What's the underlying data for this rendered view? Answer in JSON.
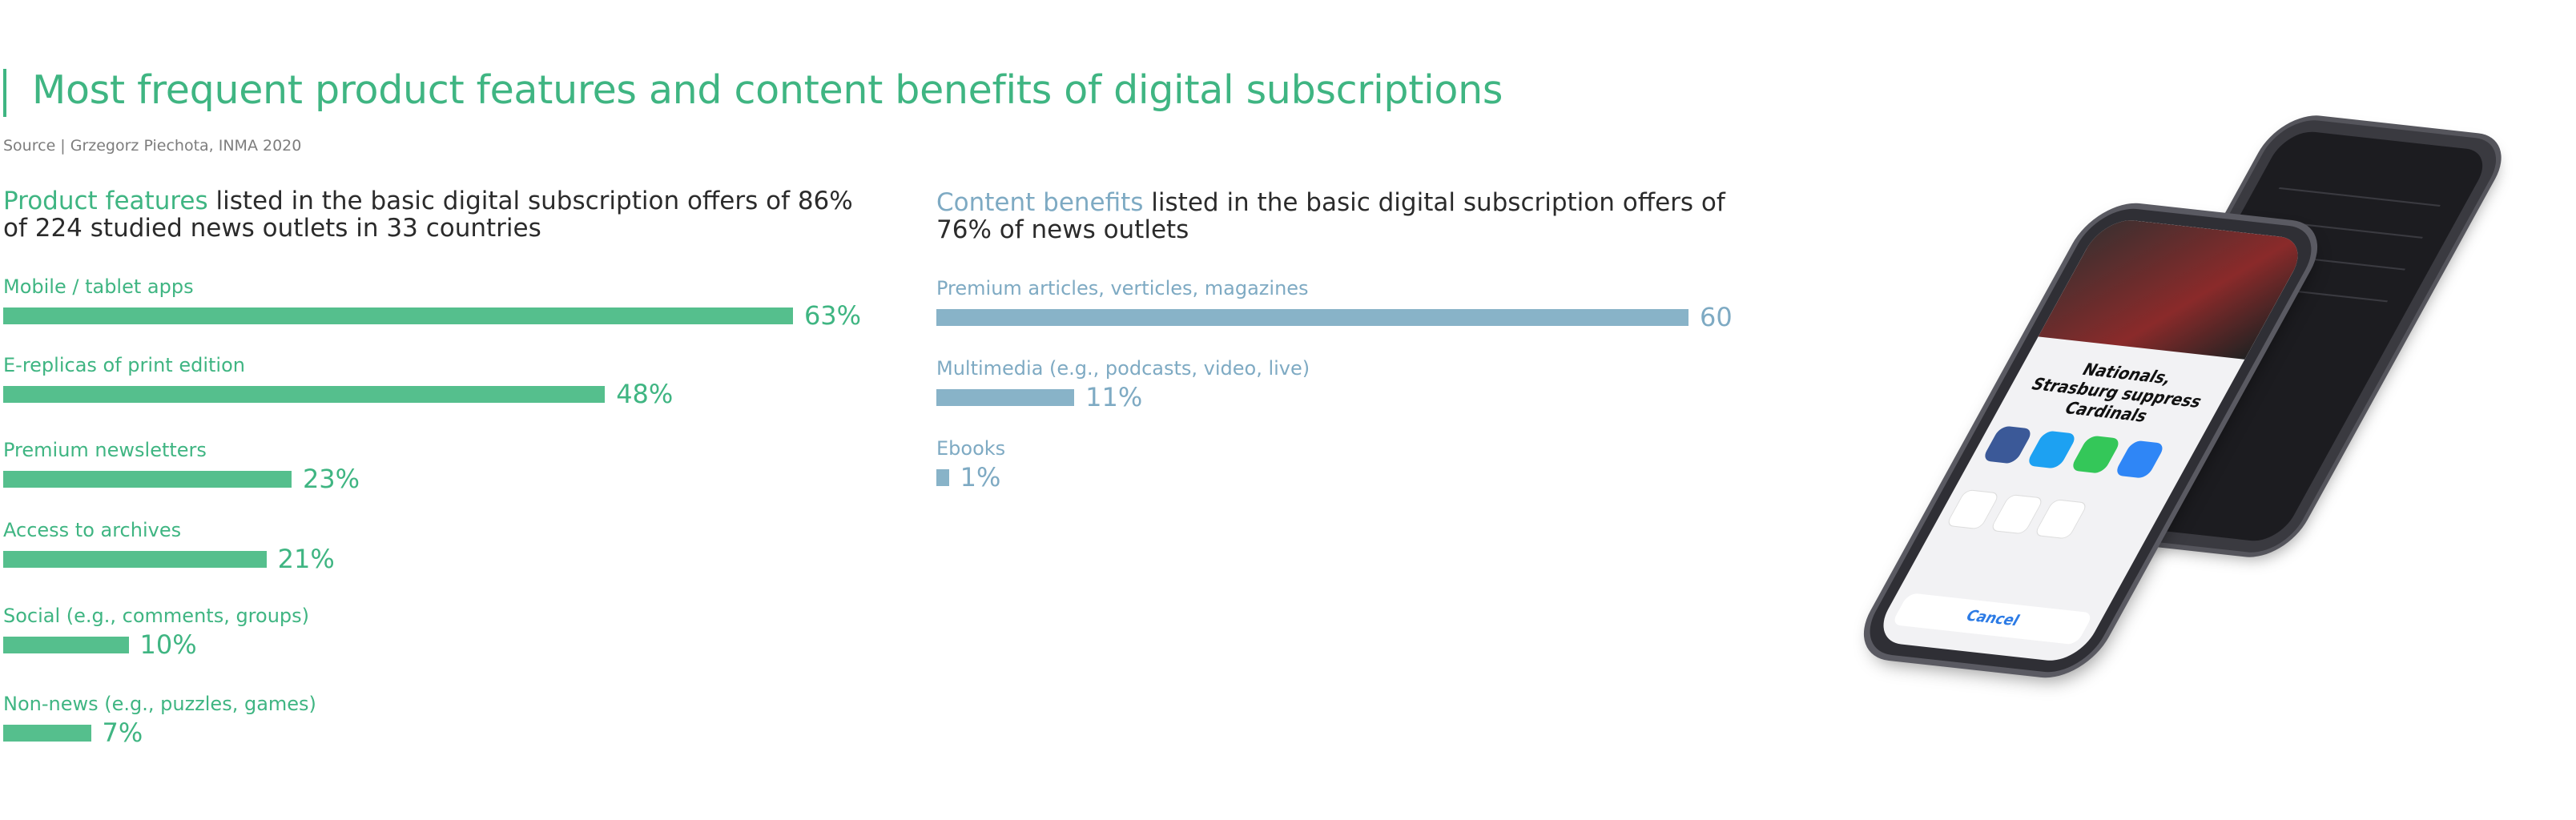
{
  "title": "Most frequent product features and content benefits of digital subscriptions",
  "source": "Source | Grzegorz Piechota, INMA 2020",
  "colors": {
    "green": "#3fb582",
    "blue": "#7eaac3"
  },
  "left_panel": {
    "highlight": "Product features",
    "rest": " listed in the basic digital subscription offers of 86% of 224 studied news outlets in 33 countries"
  },
  "right_panel": {
    "highlight": "Content benefits",
    "rest": " listed in the basic digital subscription offers of 76% of news outlets"
  },
  "chart_data": [
    {
      "type": "bar",
      "orientation": "horizontal",
      "categories": [
        "Mobile / tablet apps",
        "E-replicas of print edition",
        "Premium newsletters",
        "Access to archives",
        "Social (e.g., comments, groups)",
        "Non-news (e.g., puzzles, games)"
      ],
      "values": [
        63,
        48,
        23,
        21,
        10,
        7
      ],
      "value_labels": [
        "63%",
        "48%",
        "23%",
        "21%",
        "10%",
        "7%"
      ],
      "xlim": [
        0,
        100
      ]
    },
    {
      "type": "bar",
      "orientation": "horizontal",
      "categories": [
        "Premium articles, verticles, magazines",
        "Multimedia (e.g., podcasts, video, live)",
        "Ebooks"
      ],
      "values": [
        60,
        11,
        1
      ],
      "value_labels": [
        "60",
        "11%",
        "1%"
      ],
      "xlim": [
        0,
        100
      ]
    }
  ],
  "phone": {
    "headline": "Nationals, Strasburg suppress Cardinals",
    "cancel_label": "Cancel"
  }
}
